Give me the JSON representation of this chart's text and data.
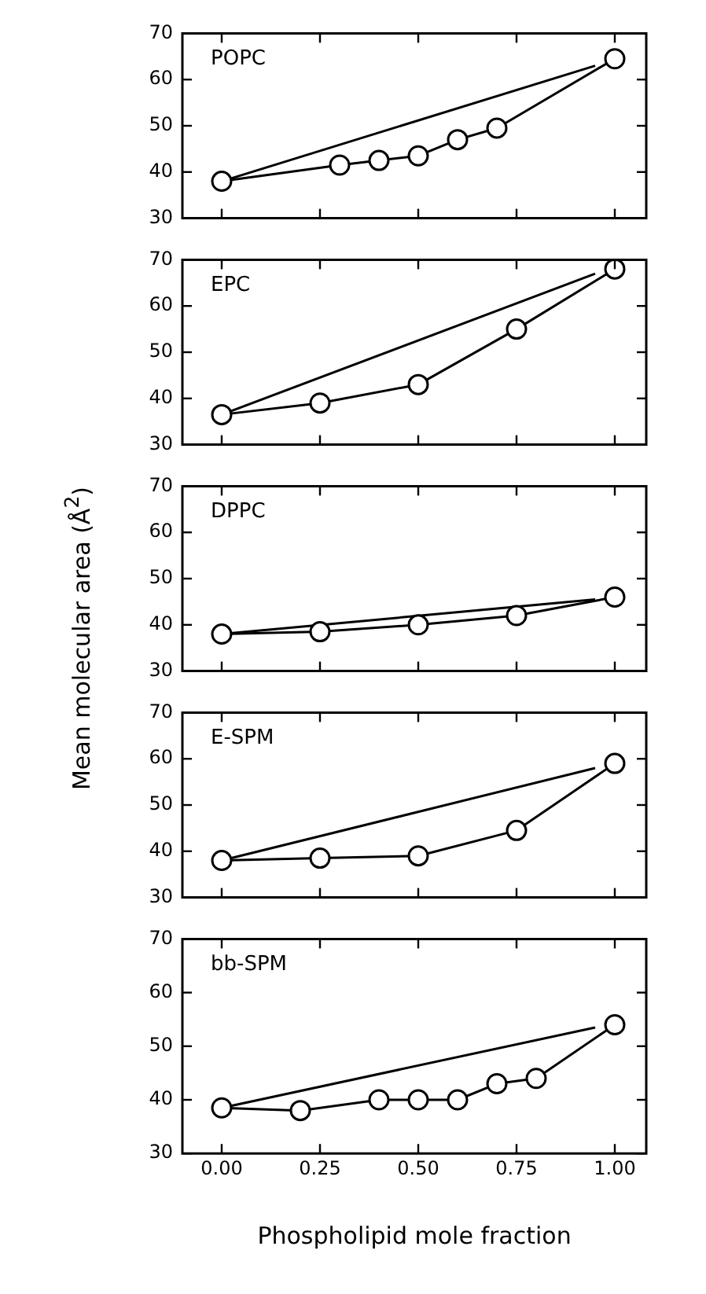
{
  "chart_data": [
    {
      "type": "line",
      "annotations": [
        "POPC"
      ],
      "xlim": [
        -0.1,
        1.08
      ],
      "ylim": [
        30,
        70
      ],
      "yticks": [
        30,
        40,
        50,
        60,
        70
      ],
      "tick_labels": "y",
      "grid": false,
      "legend": false,
      "series": [
        {
          "x": [
            0,
            0.3,
            0.4,
            0.5,
            0.6,
            0.7,
            1
          ],
          "values": [
            38,
            41.5,
            42.5,
            43.5,
            47,
            49.5,
            64.5
          ],
          "color": "#000000",
          "marker": "circle"
        },
        {
          "x": [
            0,
            0.95
          ],
          "values": [
            38,
            63
          ],
          "color": "#000000",
          "marker": "none"
        }
      ]
    },
    {
      "type": "line",
      "annotations": [
        "EPC"
      ],
      "xlim": [
        -0.1,
        1.08
      ],
      "ylim": [
        30,
        70
      ],
      "yticks": [
        30,
        40,
        50,
        60,
        70
      ],
      "tick_labels": "y",
      "grid": false,
      "legend": false,
      "series": [
        {
          "x": [
            0,
            0.25,
            0.5,
            0.75,
            1
          ],
          "values": [
            36.5,
            39,
            43,
            55,
            68
          ],
          "color": "#000000",
          "marker": "circle"
        },
        {
          "x": [
            0,
            0.95
          ],
          "values": [
            36.5,
            67
          ],
          "color": "#000000",
          "marker": "none"
        }
      ]
    },
    {
      "type": "line",
      "annotations": [
        "DPPC"
      ],
      "ylabel": "Mean molecular area (Å$^{2}$)",
      "xlim": [
        -0.1,
        1.08
      ],
      "ylim": [
        30,
        70
      ],
      "yticks": [
        30,
        40,
        50,
        60,
        70
      ],
      "tick_labels": "y",
      "grid": false,
      "legend": false,
      "series": [
        {
          "x": [
            0,
            0.25,
            0.5,
            0.75,
            1
          ],
          "values": [
            38,
            38.5,
            40,
            42,
            46
          ],
          "color": "#000000",
          "marker": "circle"
        },
        {
          "x": [
            0,
            0.95
          ],
          "values": [
            38,
            45.5
          ],
          "color": "#000000",
          "marker": "none"
        }
      ]
    },
    {
      "type": "line",
      "annotations": [
        "E-SPM"
      ],
      "xlim": [
        -0.1,
        1.08
      ],
      "ylim": [
        30,
        70
      ],
      "yticks": [
        30,
        40,
        50,
        60,
        70
      ],
      "tick_labels": "y",
      "grid": false,
      "legend": false,
      "series": [
        {
          "x": [
            0,
            0.25,
            0.5,
            0.75,
            1
          ],
          "values": [
            38,
            38.5,
            39,
            44.5,
            59
          ],
          "color": "#000000",
          "marker": "circle"
        },
        {
          "x": [
            0,
            0.95
          ],
          "values": [
            38,
            58
          ],
          "color": "#000000",
          "marker": "none"
        }
      ]
    },
    {
      "type": "line",
      "annotations": [
        "bb-SPM"
      ],
      "xlabel": "Phospholipid mole fraction",
      "xlim": [
        -0.1,
        1.08
      ],
      "ylim": [
        30,
        70
      ],
      "yticks": [
        30,
        40,
        50,
        60,
        70
      ],
      "xticks": [
        {
          "value": 0,
          "label": "0.00"
        },
        {
          "value": 0.25,
          "label": "0.25"
        },
        {
          "value": 0.5,
          "label": "0.50"
        },
        {
          "value": 0.75,
          "label": "0.75"
        },
        {
          "value": 1,
          "label": "1.00"
        }
      ],
      "grid": false,
      "legend": false,
      "series": [
        {
          "x": [
            0,
            0.2,
            0.4,
            0.5,
            0.6,
            0.7,
            0.8,
            1
          ],
          "values": [
            38.5,
            38,
            40,
            40,
            40,
            43,
            44,
            54
          ],
          "color": "#000000",
          "marker": "circle"
        },
        {
          "x": [
            0,
            0.95
          ],
          "values": [
            38.5,
            53.5
          ],
          "color": "#000000",
          "marker": "none"
        }
      ]
    }
  ]
}
